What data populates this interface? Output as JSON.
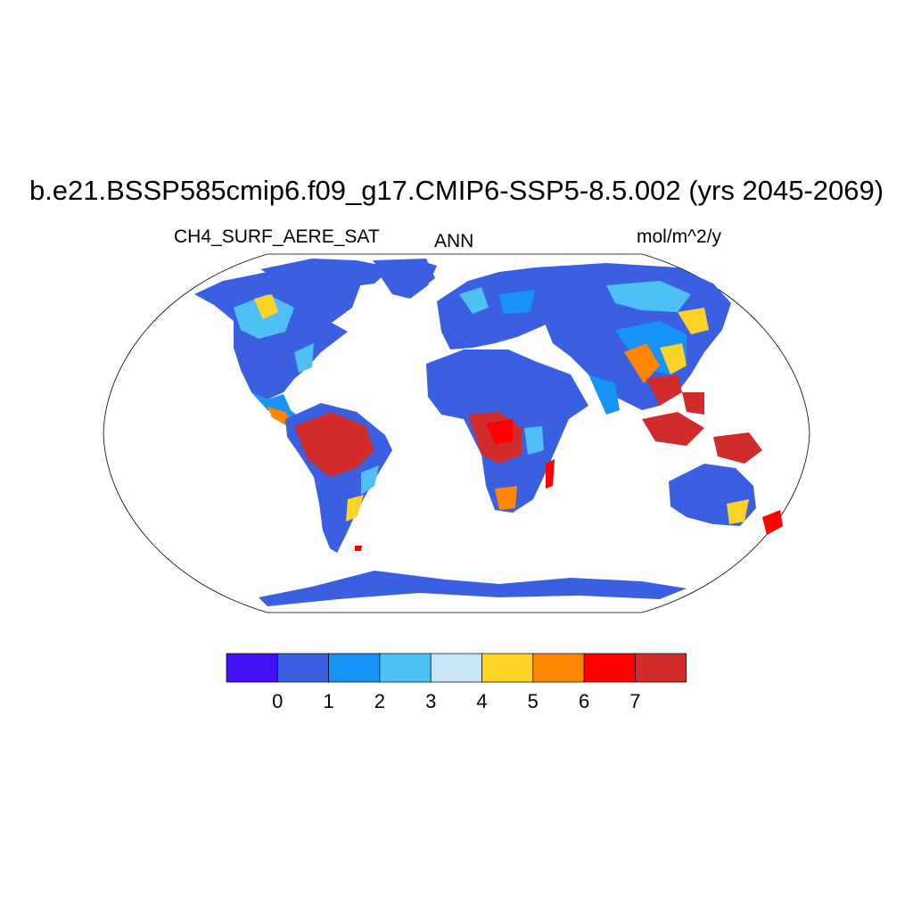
{
  "title": "b.e21.BSSP585cmip6.f09_g17.CMIP6-SSP5-8.5.002 (yrs 2045-2069)",
  "variable": "CH4_SURF_AERE_SAT",
  "season": "ANN",
  "units": "mol/m^2/y",
  "colorbar": {
    "colors": [
      "#4212f5",
      "#3a5fe0",
      "#1793f7",
      "#4fc0f5",
      "#c9e6f8",
      "#fdd325",
      "#ff8600",
      "#ff0000",
      "#d22b2b"
    ],
    "tick_labels": [
      "0",
      "1",
      "2",
      "3",
      "4",
      "5",
      "6",
      "7"
    ]
  },
  "map": {
    "projection": "Robinson",
    "ocean_color": "#ffffff",
    "coastline_color": "#000000"
  }
}
